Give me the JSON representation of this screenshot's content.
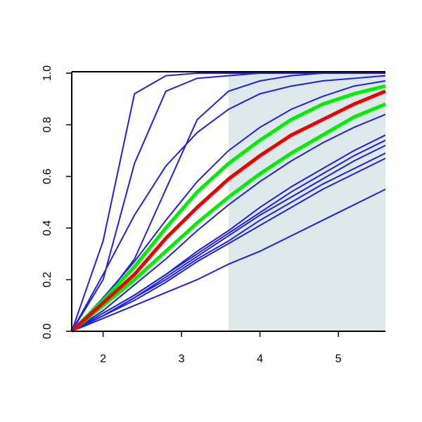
{
  "chart_data": {
    "type": "line",
    "x": [
      1.6,
      2.0,
      2.4,
      2.8,
      3.2,
      3.6,
      4.0,
      4.4,
      4.8,
      5.2,
      5.6
    ],
    "xlim": [
      1.6,
      5.6
    ],
    "ylim": [
      0,
      1
    ],
    "xticks": [
      2,
      3,
      4,
      5
    ],
    "yticks": [
      {
        "value": 0,
        "label": "0.0"
      },
      {
        "value": 0.2,
        "label": "0.2"
      },
      {
        "value": 0.4,
        "label": "0.4"
      },
      {
        "value": 0.6,
        "label": "0.6"
      },
      {
        "value": 0.8,
        "label": "0.8"
      },
      {
        "value": 1,
        "label": "1.0"
      }
    ],
    "shade": {
      "xlim": [
        3.6,
        5.6
      ],
      "color": "#dde9ea"
    },
    "series": [
      {
        "color": "#2020e0",
        "width": 2,
        "values": [
          0,
          0.35,
          0.92,
          0.99,
          1,
          1,
          1,
          1,
          1,
          1,
          1
        ]
      },
      {
        "color": "#2020e0",
        "width": 2,
        "values": [
          0,
          0.2,
          0.65,
          0.93,
          0.98,
          0.99,
          1,
          1,
          1,
          1,
          1
        ]
      },
      {
        "color": "#2020e0",
        "width": 2,
        "values": [
          0,
          0.12,
          0.28,
          0.55,
          0.82,
          0.93,
          0.97,
          0.99,
          1,
          1,
          1
        ]
      },
      {
        "color": "#2020e0",
        "width": 2,
        "values": [
          0,
          0.22,
          0.45,
          0.64,
          0.77,
          0.86,
          0.92,
          0.95,
          0.97,
          0.98,
          0.99
        ]
      },
      {
        "color": "#2020e0",
        "width": 2,
        "values": [
          0,
          0.13,
          0.27,
          0.43,
          0.58,
          0.7,
          0.79,
          0.86,
          0.91,
          0.95,
          0.97
        ]
      },
      {
        "color": "#2020e0",
        "width": 2,
        "values": [
          0,
          0.08,
          0.18,
          0.28,
          0.39,
          0.49,
          0.58,
          0.66,
          0.73,
          0.79,
          0.84
        ]
      },
      {
        "color": "#2020e0",
        "width": 2,
        "values": [
          0,
          0.07,
          0.14,
          0.22,
          0.31,
          0.39,
          0.48,
          0.56,
          0.63,
          0.7,
          0.76
        ]
      },
      {
        "color": "#2020e0",
        "width": 2,
        "values": [
          0,
          0.07,
          0.14,
          0.22,
          0.3,
          0.38,
          0.46,
          0.54,
          0.61,
          0.68,
          0.74
        ]
      },
      {
        "color": "#2020e0",
        "width": 2,
        "values": [
          0,
          0.06,
          0.13,
          0.21,
          0.29,
          0.37,
          0.45,
          0.52,
          0.59,
          0.66,
          0.72
        ]
      },
      {
        "color": "#2020e0",
        "width": 2,
        "values": [
          0,
          0.06,
          0.13,
          0.2,
          0.28,
          0.35,
          0.43,
          0.5,
          0.57,
          0.63,
          0.69
        ]
      },
      {
        "color": "#2020e0",
        "width": 2,
        "values": [
          0,
          0.06,
          0.12,
          0.19,
          0.27,
          0.34,
          0.41,
          0.48,
          0.55,
          0.61,
          0.67
        ]
      },
      {
        "color": "#2020e0",
        "width": 2,
        "values": [
          0,
          0.05,
          0.1,
          0.15,
          0.2,
          0.26,
          0.31,
          0.37,
          0.43,
          0.49,
          0.55
        ]
      },
      {
        "color": "#00ee00",
        "width": 5,
        "values": [
          0,
          0.12,
          0.25,
          0.4,
          0.54,
          0.65,
          0.74,
          0.82,
          0.88,
          0.92,
          0.95
        ]
      },
      {
        "color": "#00ee00",
        "width": 5,
        "values": [
          0,
          0.1,
          0.2,
          0.31,
          0.42,
          0.52,
          0.61,
          0.69,
          0.76,
          0.83,
          0.88
        ]
      },
      {
        "color": "#ee0000",
        "width": 5,
        "values": [
          0,
          0.11,
          0.22,
          0.36,
          0.48,
          0.59,
          0.68,
          0.76,
          0.82,
          0.88,
          0.93
        ]
      }
    ]
  }
}
